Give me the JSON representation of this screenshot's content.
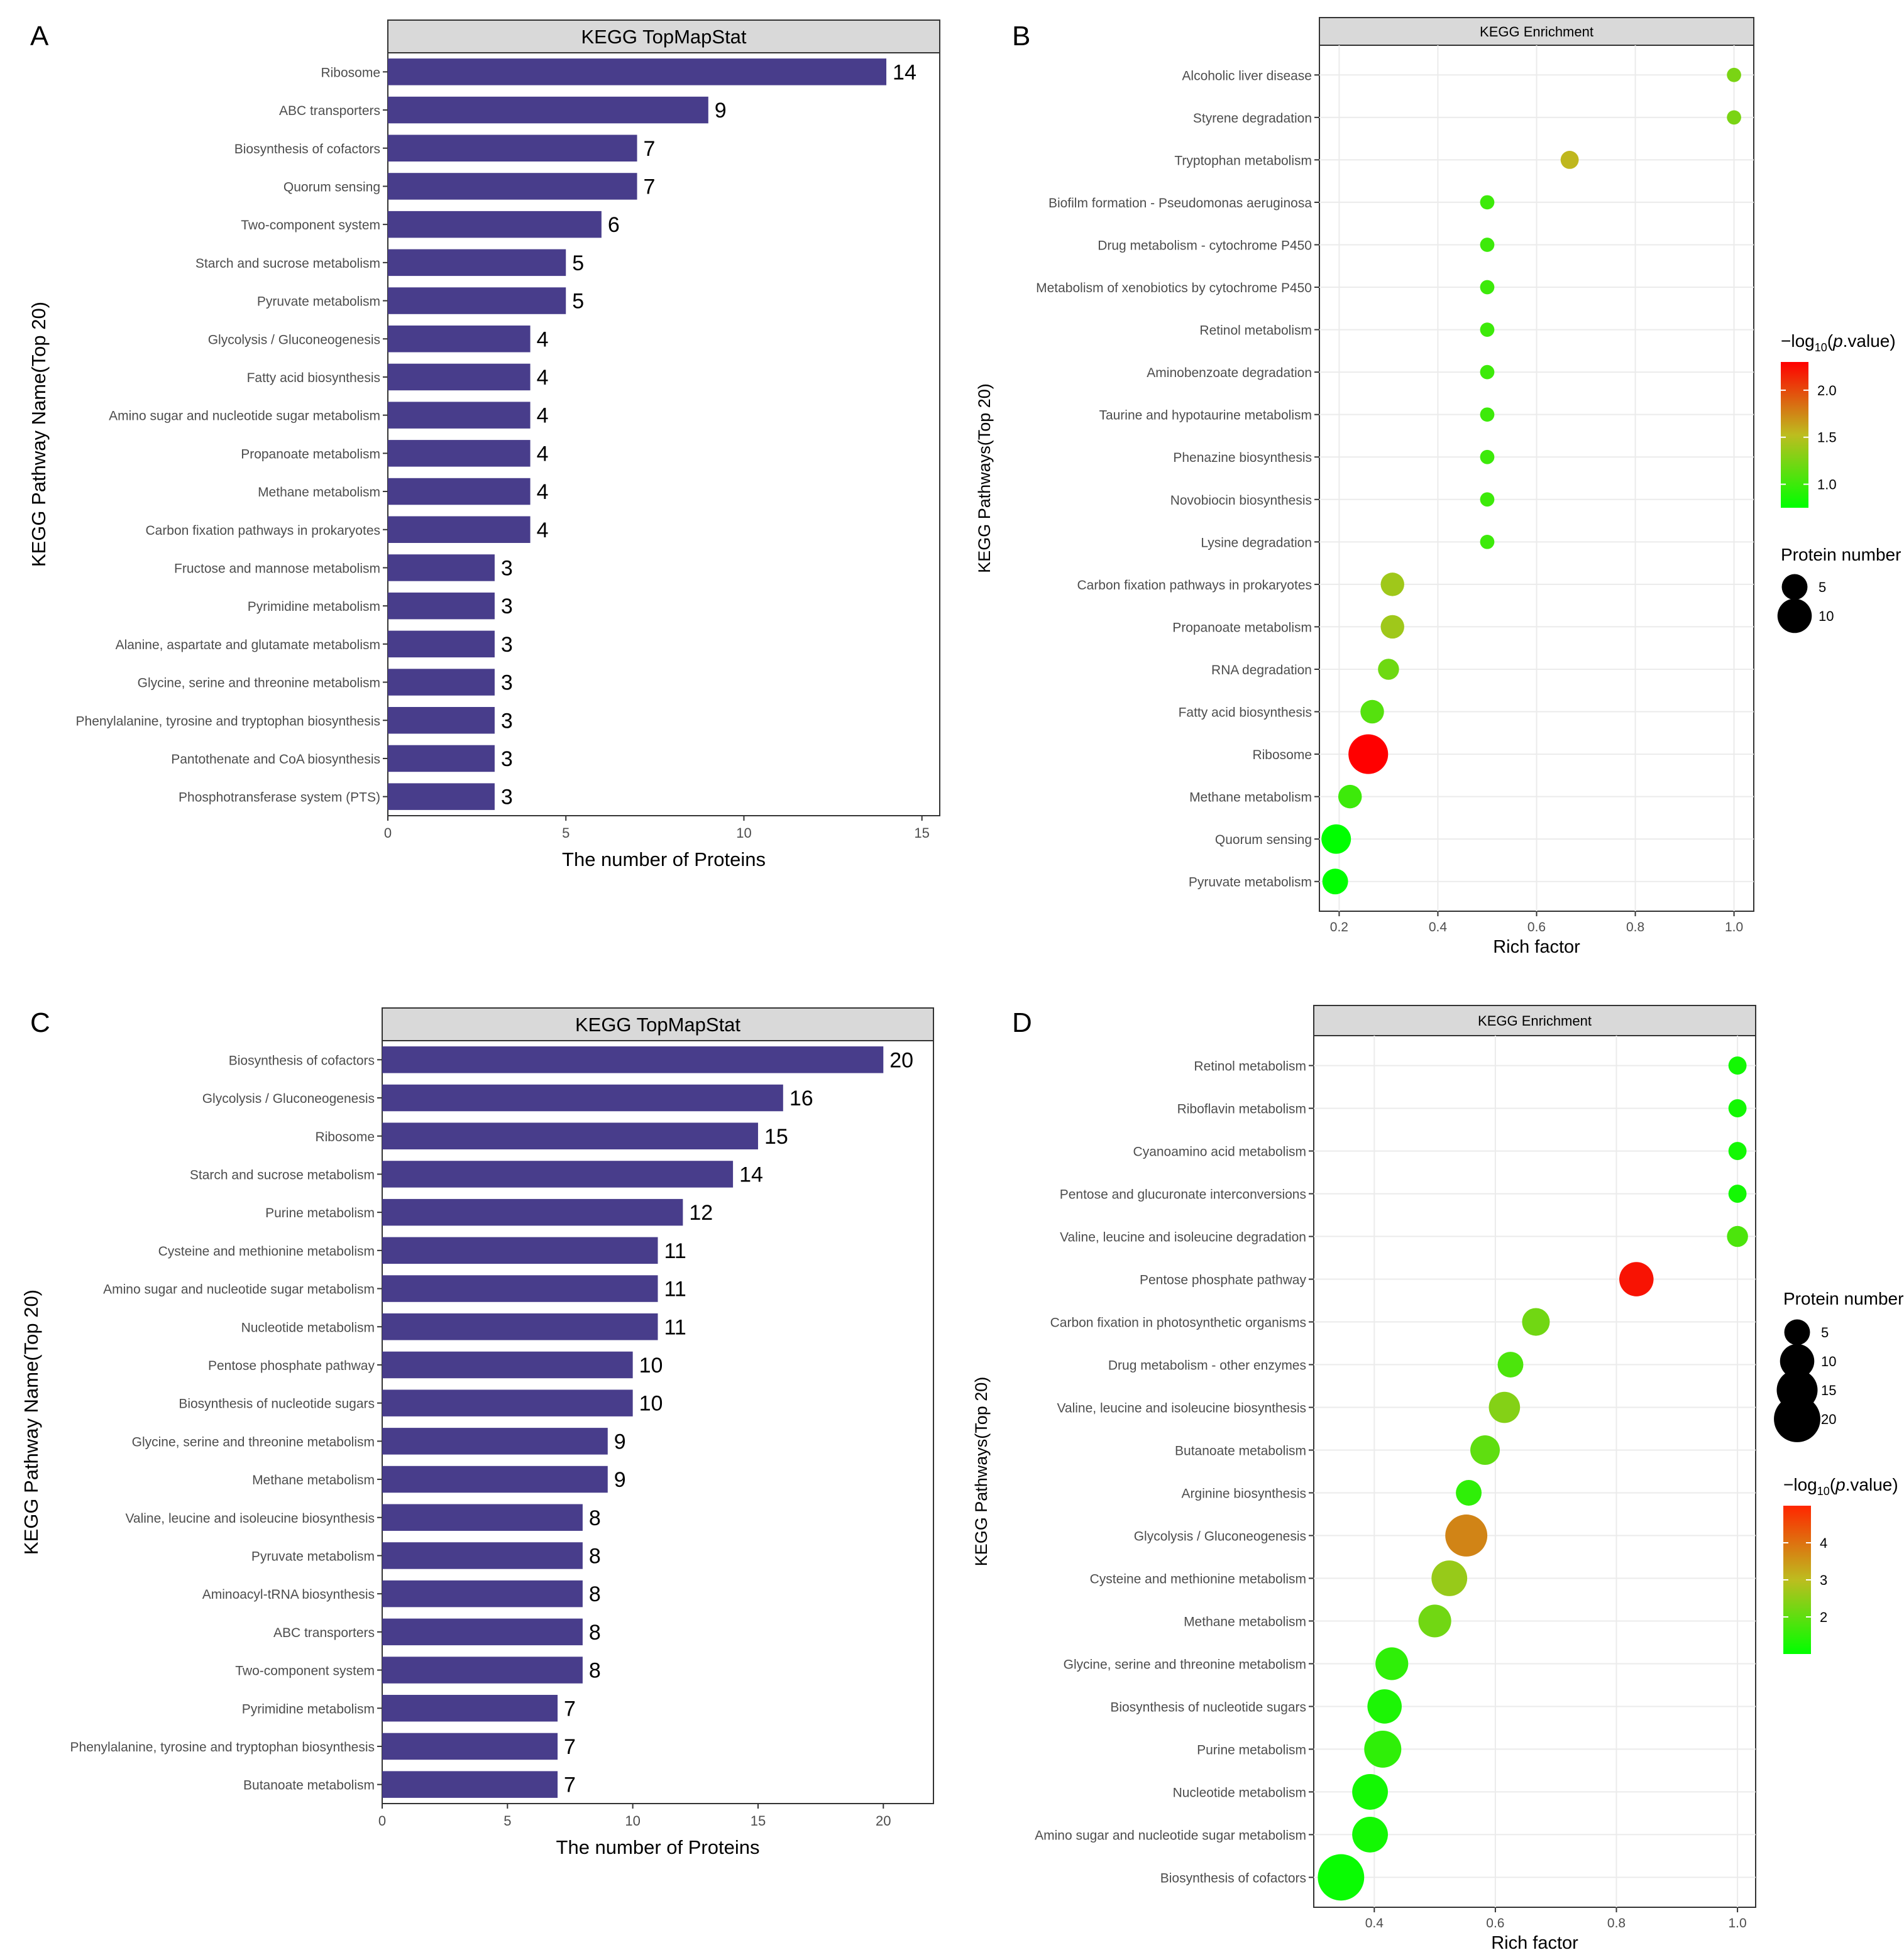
{
  "colors": {
    "bar": "#483D8B",
    "strip": "#D9D9D9",
    "low": "#00FF00",
    "mid": "#BDBD1F",
    "high": "#FF0000"
  },
  "chart_data": [
    {
      "panel_letter": "A",
      "type": "bar",
      "orientation": "horizontal",
      "strip_title": "KEGG TopMapStat",
      "xlabel": "The number of Proteins",
      "ylabel": "KEGG Pathway Name(Top 20)",
      "xlim": [
        0,
        15.5
      ],
      "xticks": [
        "0",
        "5",
        "10",
        "15"
      ],
      "categories": [
        "Ribosome",
        "ABC transporters",
        "Biosynthesis of cofactors",
        "Quorum sensing",
        "Two-component system",
        "Starch and sucrose metabolism",
        "Pyruvate metabolism",
        "Glycolysis / Gluconeogenesis",
        "Fatty acid biosynthesis",
        "Amino sugar and nucleotide sugar metabolism",
        "Propanoate metabolism",
        "Methane metabolism",
        "Carbon fixation pathways in prokaryotes",
        "Fructose and mannose metabolism",
        "Pyrimidine metabolism",
        "Alanine, aspartate and glutamate metabolism",
        "Glycine, serine and threonine metabolism",
        "Phenylalanine, tyrosine and tryptophan biosynthesis",
        "Pantothenate and CoA biosynthesis",
        "Phosphotransferase system (PTS)"
      ],
      "values": [
        14,
        9,
        7,
        7,
        6,
        5,
        5,
        4,
        4,
        4,
        4,
        4,
        4,
        3,
        3,
        3,
        3,
        3,
        3,
        3
      ]
    },
    {
      "panel_letter": "B",
      "type": "scatter",
      "strip_title": "KEGG Enrichment",
      "xlabel": "Rich factor",
      "ylabel": "KEGG Pathways(Top 20)",
      "xlim": [
        0.16,
        1.04
      ],
      "xticks": [
        "0.2",
        "0.4",
        "0.6",
        "0.8",
        "1.0"
      ],
      "categories": [
        "Alcoholic liver disease",
        "Styrene degradation",
        "Tryptophan metabolism",
        "Biofilm formation - Pseudomonas aeruginosa",
        "Drug metabolism - cytochrome P450",
        "Metabolism of xenobiotics by cytochrome P450",
        "Retinol metabolism",
        "Aminobenzoate degradation",
        "Taurine and hypotaurine metabolism",
        "Phenazine biosynthesis",
        "Novobiocin biosynthesis",
        "Lysine degradation",
        "Carbon fixation pathways in prokaryotes",
        "Propanoate metabolism",
        "RNA degradation",
        "Fatty acid biosynthesis",
        "Ribosome",
        "Methane metabolism",
        "Quorum sensing",
        "Pyruvate metabolism"
      ],
      "rich_factor": [
        1.0,
        1.0,
        0.667,
        0.5,
        0.5,
        0.5,
        0.5,
        0.5,
        0.5,
        0.5,
        0.5,
        0.5,
        0.308,
        0.308,
        0.3,
        0.267,
        0.259,
        0.222,
        0.194,
        0.192
      ],
      "neg_log10_p": [
        1.25,
        1.25,
        1.55,
        1.0,
        1.0,
        1.0,
        1.0,
        1.0,
        1.0,
        1.0,
        1.0,
        1.0,
        1.4,
        1.4,
        1.2,
        1.1,
        2.3,
        1.0,
        0.75,
        0.75
      ],
      "protein_number": [
        1,
        1,
        2,
        1,
        1,
        1,
        1,
        1,
        1,
        1,
        1,
        1,
        4,
        4,
        3,
        4,
        14,
        4,
        7,
        5
      ],
      "color_range": [
        0.75,
        2.3
      ],
      "color_legend": {
        "title_prefix": "−log",
        "title_sub": "10",
        "title_open": "(",
        "title_p": "p",
        "title_suffix": ".value)",
        "ticks": [
          "2.0",
          "1.5",
          "1.0"
        ],
        "tick_values": [
          2.0,
          1.5,
          1.0
        ]
      },
      "size_legend": {
        "title": "Protein number",
        "labels": [
          "5",
          "10"
        ],
        "values": [
          5,
          10
        ]
      }
    },
    {
      "panel_letter": "C",
      "type": "bar",
      "orientation": "horizontal",
      "strip_title": "KEGG TopMapStat",
      "xlabel": "The number of Proteins",
      "ylabel": "KEGG Pathway Name(Top 20)",
      "xlim": [
        0,
        22
      ],
      "xticks": [
        "0",
        "5",
        "10",
        "15",
        "20"
      ],
      "categories": [
        "Biosynthesis of cofactors",
        "Glycolysis / Gluconeogenesis",
        "Ribosome",
        "Starch and sucrose metabolism",
        "Purine metabolism",
        "Cysteine and methionine metabolism",
        "Amino sugar and nucleotide sugar metabolism",
        "Nucleotide metabolism",
        "Pentose phosphate pathway",
        "Biosynthesis of nucleotide sugars",
        "Glycine, serine and threonine metabolism",
        "Methane metabolism",
        "Valine, leucine and isoleucine biosynthesis",
        "Pyruvate metabolism",
        "Aminoacyl-tRNA biosynthesis",
        "ABC transporters",
        "Two-component system",
        "Pyrimidine metabolism",
        "Phenylalanine, tyrosine and tryptophan biosynthesis",
        "Butanoate metabolism"
      ],
      "values": [
        20,
        16,
        15,
        14,
        12,
        11,
        11,
        11,
        10,
        10,
        9,
        9,
        8,
        8,
        8,
        8,
        8,
        7,
        7,
        7
      ]
    },
    {
      "panel_letter": "D",
      "type": "scatter",
      "strip_title": "KEGG Enrichment",
      "xlabel": "Rich factor",
      "ylabel": "KEGG Pathways(Top 20)",
      "xlim": [
        0.3,
        1.03
      ],
      "xticks": [
        "0.4",
        "0.6",
        "0.8",
        "1.0"
      ],
      "categories": [
        "Retinol metabolism",
        "Riboflavin metabolism",
        "Cyanoamino acid metabolism",
        "Pentose and glucuronate interconversions",
        "Valine, leucine and isoleucine degradation",
        "Pentose phosphate pathway",
        "Carbon fixation in photosynthetic organisms",
        "Drug metabolism - other enzymes",
        "Valine, leucine and isoleucine biosynthesis",
        "Butanoate metabolism",
        "Arginine biosynthesis",
        "Glycolysis / Gluconeogenesis",
        "Cysteine and methionine metabolism",
        "Methane metabolism",
        "Glycine, serine and threonine metabolism",
        "Biosynthesis of nucleotide sugars",
        "Purine metabolism",
        "Nucleotide metabolism",
        "Amino sugar and nucleotide sugar metabolism",
        "Biosynthesis of cofactors"
      ],
      "rich_factor": [
        1.0,
        1.0,
        1.0,
        1.0,
        1.0,
        0.833,
        0.667,
        0.625,
        0.615,
        0.583,
        0.556,
        0.552,
        0.524,
        0.5,
        0.429,
        0.417,
        0.414,
        0.393,
        0.393,
        0.345
      ],
      "neg_log10_p": [
        1.2,
        1.2,
        1.2,
        1.2,
        1.8,
        4.8,
        2.2,
        1.8,
        2.4,
        2.0,
        1.5,
        3.6,
        2.6,
        2.2,
        1.5,
        1.3,
        1.5,
        1.2,
        1.2,
        1.1
      ],
      "protein_number": [
        2,
        2,
        2,
        2,
        3,
        10,
        6,
        5,
        8,
        7,
        5,
        16,
        11,
        9,
        9,
        10,
        12,
        11,
        11,
        20
      ],
      "color_range": [
        1.0,
        5.0
      ],
      "color_legend": {
        "title_prefix": "−log",
        "title_sub": "10",
        "title_open": "(",
        "title_p": "p",
        "title_suffix": ".value)",
        "ticks": [
          "4",
          "3",
          "2"
        ],
        "tick_values": [
          4,
          3,
          2
        ]
      },
      "size_legend": {
        "title": "Protein number",
        "labels": [
          "5",
          "10",
          "15",
          "20"
        ],
        "values": [
          5,
          10,
          15,
          20
        ]
      }
    }
  ]
}
